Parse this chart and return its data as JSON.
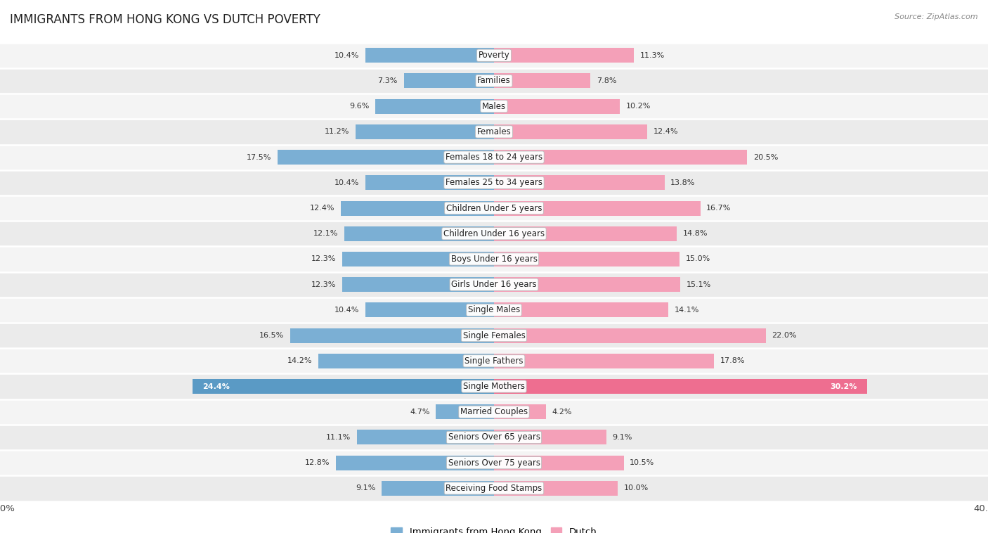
{
  "title": "IMMIGRANTS FROM HONG KONG VS DUTCH POVERTY",
  "source": "Source: ZipAtlas.com",
  "categories": [
    "Poverty",
    "Families",
    "Males",
    "Females",
    "Females 18 to 24 years",
    "Females 25 to 34 years",
    "Children Under 5 years",
    "Children Under 16 years",
    "Boys Under 16 years",
    "Girls Under 16 years",
    "Single Males",
    "Single Females",
    "Single Fathers",
    "Single Mothers",
    "Married Couples",
    "Seniors Over 65 years",
    "Seniors Over 75 years",
    "Receiving Food Stamps"
  ],
  "hk_values": [
    10.4,
    7.3,
    9.6,
    11.2,
    17.5,
    10.4,
    12.4,
    12.1,
    12.3,
    12.3,
    10.4,
    16.5,
    14.2,
    24.4,
    4.7,
    11.1,
    12.8,
    9.1
  ],
  "dutch_values": [
    11.3,
    7.8,
    10.2,
    12.4,
    20.5,
    13.8,
    16.7,
    14.8,
    15.0,
    15.1,
    14.1,
    22.0,
    17.8,
    30.2,
    4.2,
    9.1,
    10.5,
    10.0
  ],
  "hk_color": "#7bafd4",
  "dutch_color": "#f4a0b8",
  "hk_highlight": "#5a9ac5",
  "dutch_highlight": "#ee6e90",
  "axis_max": 40.0,
  "bar_height": 0.58,
  "row_bg_even": "#f4f4f4",
  "row_bg_odd": "#ebebeb",
  "label_fontsize": 8.5,
  "title_fontsize": 12,
  "value_fontsize": 8,
  "source_fontsize": 8
}
